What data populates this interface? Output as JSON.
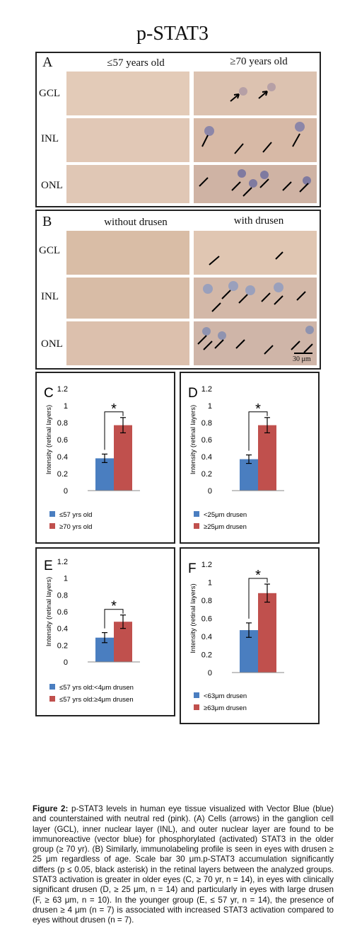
{
  "title": "p-STAT3",
  "panelA": {
    "label": "A",
    "col1": "≤57 years old",
    "col2": "≥70 years old",
    "rows": [
      "GCL",
      "INL",
      "ONL"
    ]
  },
  "panelB": {
    "label": "B",
    "col1": "without drusen",
    "col2": "with drusen",
    "rows": [
      "GCL",
      "INL",
      "ONL"
    ],
    "scale": "30 μm"
  },
  "chart_data": [
    {
      "panel": "C",
      "type": "bar",
      "ylabel": "Intensity (retinal layers)",
      "ylim": [
        0,
        1.2
      ],
      "yticks": [
        "0",
        "0.2",
        "0.4",
        "0.6",
        "0.8",
        "1",
        "1.2"
      ],
      "series": [
        {
          "name": "≤57 yrs old",
          "value": 0.38,
          "error": 0.05,
          "color": "#4a7ec0"
        },
        {
          "name": "≥70 yrs old",
          "value": 0.77,
          "error": 0.09,
          "color": "#c0504d"
        }
      ],
      "annotation": "*"
    },
    {
      "panel": "D",
      "type": "bar",
      "ylabel": "Intensity (retinal layers)",
      "ylim": [
        0,
        1.2
      ],
      "yticks": [
        "0",
        "0.2",
        "0.4",
        "0.6",
        "0.8",
        "1",
        "1.2"
      ],
      "series": [
        {
          "name": "<25μm drusen",
          "value": 0.37,
          "error": 0.05,
          "color": "#4a7ec0"
        },
        {
          "name": "≥25μm drusen",
          "value": 0.77,
          "error": 0.09,
          "color": "#c0504d"
        }
      ],
      "annotation": "*"
    },
    {
      "panel": "E",
      "type": "bar",
      "ylabel": "Intensity (retinal layers)",
      "ylim": [
        0,
        1.2
      ],
      "yticks": [
        "0",
        "0.2",
        "0.4",
        "0.6",
        "0.8",
        "1",
        "1.2"
      ],
      "series": [
        {
          "name": "≤57 yrs old:<4μm drusen",
          "value": 0.29,
          "error": 0.06,
          "color": "#4a7ec0"
        },
        {
          "name": "≤57 yrs old:≥4μm drusen",
          "value": 0.48,
          "error": 0.08,
          "color": "#c0504d"
        }
      ],
      "annotation": "*"
    },
    {
      "panel": "F",
      "type": "bar",
      "ylabel": "Intensity (retinal layers)",
      "ylim": [
        0,
        1.2
      ],
      "yticks": [
        "0",
        "0.2",
        "0.4",
        "0.6",
        "0.8",
        "1",
        "1.2"
      ],
      "series": [
        {
          "name": "<63μm drusen",
          "value": 0.47,
          "error": 0.08,
          "color": "#4a7ec0"
        },
        {
          "name": "≥63μm drusen",
          "value": 0.88,
          "error": 0.1,
          "color": "#c0504d"
        }
      ],
      "annotation": "*"
    }
  ],
  "caption": {
    "lead": "Figure 2:",
    "text": " p-STAT3 levels in human eye tissue visualized with Vector Blue (blue) and counterstained with neutral red (pink). (A) Cells (arrows) in the ganglion cell layer (GCL), inner nuclear layer (INL), and outer nuclear layer are found to be immunoreactive (vector blue) for phosphorylated (activated) STAT3 in the older group (≥ 70 yr). (B) Similarly, immunolabeling profile is seen in eyes with drusen ≥ 25 μm regardless of age. Scale bar 30 μm.p-STAT3 accumulation significantly differs (p ≤ 0.05, black asterisk) in the retinal layers between the analyzed groups. STAT3 activation is greater in older eyes (C, ≥ 70 yr, n = 14), in eyes with clinically significant drusen (D, ≥ 25 μm, n = 14) and particularly in eyes with large drusen (F, ≥ 63 μm, n = 10). In the younger group (E, ≤ 57 yr, n = 14), the presence of drusen ≥ 4 μm (n = 7) is associated with increased STAT3 activation compared to eyes without drusen (n = 7)."
  }
}
